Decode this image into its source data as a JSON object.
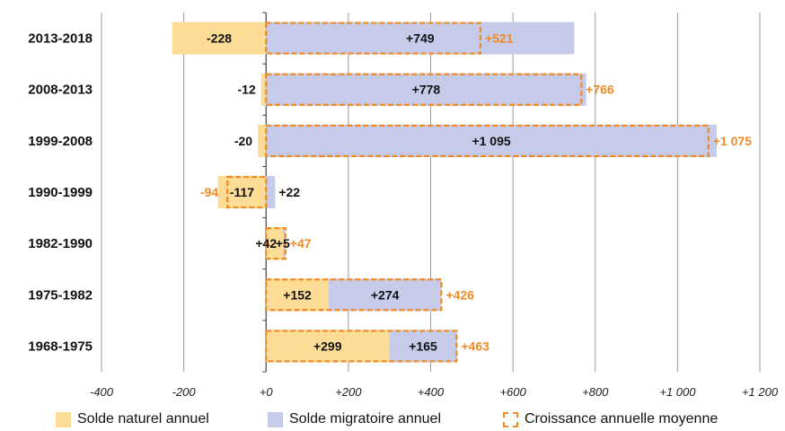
{
  "chart_data": {
    "type": "bar",
    "orientation": "horizontal",
    "categories": [
      "2013-2018",
      "2008-2013",
      "1999-2008",
      "1990-1999",
      "1982-1990",
      "1975-1982",
      "1968-1975"
    ],
    "series": [
      {
        "name": "Solde naturel annuel",
        "values": [
          -228,
          -12,
          -20,
          -117,
          42,
          152,
          299
        ],
        "labels": [
          "-228",
          "-12",
          "-20",
          "-117",
          "+42",
          "+152",
          "+299"
        ],
        "color": "#fddc95"
      },
      {
        "name": "Solde migratoire annuel",
        "values": [
          749,
          778,
          1095,
          22,
          5,
          274,
          165
        ],
        "labels": [
          "+749",
          "+778",
          "+1 095",
          "+22",
          "+5",
          "+274",
          "+165"
        ],
        "color": "#c5cbe8"
      },
      {
        "name": "Croissance annuelle moyenne",
        "values": [
          521,
          766,
          1075,
          -94,
          47,
          426,
          463
        ],
        "labels": [
          "+521",
          "+766",
          "+1 075",
          "-94",
          "+47",
          "+426",
          "+463"
        ],
        "color": "#ef8a24"
      }
    ],
    "xlim": [
      -400,
      1200
    ],
    "x_ticks": [
      -400,
      -200,
      0,
      200,
      400,
      600,
      800,
      1000,
      1200
    ],
    "x_tick_labels": [
      "-400",
      "-200",
      "+0",
      "+200",
      "+400",
      "+600",
      "+800",
      "+1 000",
      "+1 200"
    ],
    "grid": "vertical",
    "legend_position": "bottom"
  }
}
